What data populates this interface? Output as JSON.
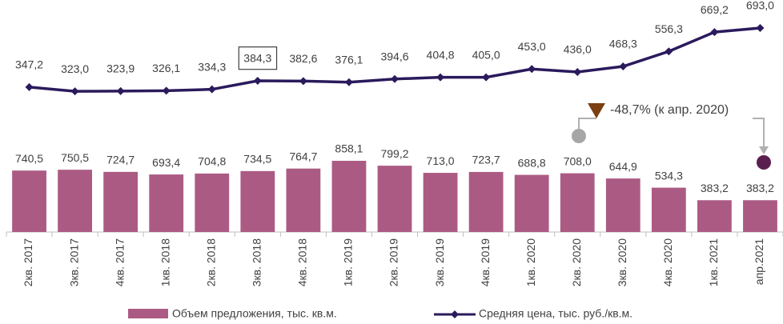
{
  "chart_data": {
    "type": "bar_line",
    "categories": [
      "2кв. 2017",
      "3кв. 2017",
      "4кв. 2017",
      "1кв. 2018",
      "2кв. 2018",
      "3кв. 2018",
      "4кв. 2018",
      "1кв. 2019",
      "2кв. 2019",
      "3кв. 2019",
      "4кв. 2019",
      "1кв. 2020",
      "2кв. 2020",
      "3кв. 2020",
      "4кв. 2020",
      "1кв. 2021",
      "апр.2021"
    ],
    "series": [
      {
        "name": "Объем предложения, тыс. кв.м.",
        "type": "bar",
        "color": "#ab5b83",
        "values": [
          740.5,
          750.5,
          724.7,
          693.4,
          704.8,
          734.5,
          764.7,
          858.1,
          799.2,
          713.0,
          723.7,
          688.8,
          708.0,
          644.9,
          534.3,
          383.2,
          383.2
        ],
        "value_labels": [
          "740,5",
          "750,5",
          "724,7",
          "693,4",
          "704,8",
          "734,5",
          "764,7",
          "858,1",
          "799,2",
          "713,0",
          "723,7",
          "688,8",
          "708,0",
          "644,9",
          "534,3",
          "383,2",
          "383,2"
        ]
      },
      {
        "name": "Средняя цена, тыс. руб./кв.м.",
        "type": "line",
        "axis": "y2",
        "color": "#2b1a5c",
        "values": [
          347.2,
          323.0,
          323.9,
          326.1,
          334.3,
          384.3,
          382.6,
          376.1,
          394.6,
          404.8,
          405.0,
          453.0,
          436.0,
          468.3,
          556.3,
          669.2,
          693.0
        ],
        "value_labels": [
          "347,2",
          "323,0",
          "323,9",
          "326,1",
          "334,3",
          "384,3",
          "382,6",
          "376,1",
          "394,6",
          "404,8",
          "405,0",
          "453,0",
          "436,0",
          "468,3",
          "556,3",
          "669,2",
          "693,0"
        ]
      }
    ],
    "ylim": [
      0,
      2700
    ],
    "y2lim": [
      -500,
      810
    ],
    "annotation": "-48,7% (к апр. 2020)",
    "legend": "bottom"
  }
}
